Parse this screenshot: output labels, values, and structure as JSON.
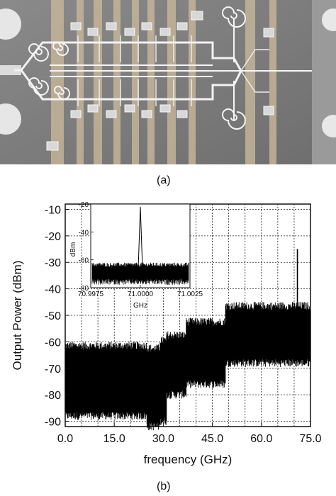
{
  "figure_a": {
    "caption": "(a)",
    "description_icon": "chip-micrograph"
  },
  "figure_b": {
    "caption": "(b)"
  },
  "chart_data": [
    {
      "type": "line",
      "xlabel": "frequency (GHz)",
      "ylabel": "Output Power (dBm)",
      "xlim": [
        0,
        75
      ],
      "ylim": [
        -92,
        -8
      ],
      "x_ticks": [
        "0.0",
        "15.0",
        "30.0",
        "45.0",
        "60.0",
        "75.0"
      ],
      "y_ticks": [
        "-10",
        "-20",
        "-30",
        "-40",
        "-50",
        "-60",
        "-70",
        "-80",
        "-90"
      ],
      "grid": "dotted",
      "noise_segments": [
        {
          "x": [
            0,
            25
          ],
          "floor_min": -88,
          "floor_max": -62
        },
        {
          "x": [
            25,
            29
          ],
          "floor_min": -92,
          "floor_max": -63
        },
        {
          "x": [
            29,
            31
          ],
          "floor_min": -90,
          "floor_max": -60
        },
        {
          "x": [
            31,
            37
          ],
          "floor_min": -80,
          "floor_max": -58
        },
        {
          "x": [
            37,
            49
          ],
          "floor_min": -76,
          "floor_max": -53
        },
        {
          "x": [
            49,
            75
          ],
          "floor_min": -68,
          "floor_max": -47
        }
      ],
      "peaks": [
        {
          "x": 71.0,
          "y": -25
        },
        {
          "x": 74.2,
          "y": -46
        }
      ]
    },
    {
      "type": "line",
      "inset": true,
      "xlabel": "GHz",
      "ylabel": "dBm",
      "x_ticks": [
        "70.9975",
        "71.0000",
        "71.0025"
      ],
      "y_ticks": [
        "-20",
        "-40",
        "-60",
        "-80"
      ],
      "xlim": [
        70.9975,
        71.0025
      ],
      "ylim": [
        -80,
        -20
      ],
      "noise_floor": {
        "min": -74,
        "max": -65
      },
      "peak": {
        "x": 71.0,
        "y": -22
      }
    }
  ]
}
